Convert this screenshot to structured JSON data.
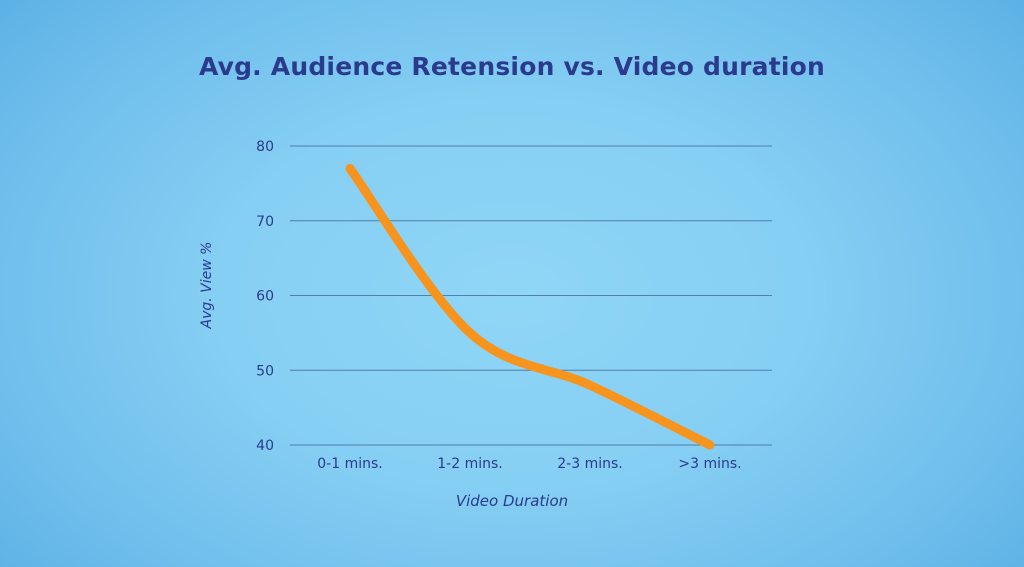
{
  "chart_data": {
    "type": "line",
    "title": "Avg. Audience Retension vs. Video duration",
    "xlabel": "Video Duration",
    "ylabel": "Avg. View %",
    "categories": [
      "0-1 mins.",
      "1-2 mins.",
      "2-3 mins.",
      ">3 mins."
    ],
    "series": [
      {
        "values": [
          77,
          55,
          48,
          40
        ],
        "color": "#f7941d"
      }
    ],
    "ylim": [
      40,
      80
    ],
    "yticks": [
      80,
      70,
      60,
      50,
      40
    ],
    "grid": true,
    "legend": "none",
    "smooth": true
  }
}
